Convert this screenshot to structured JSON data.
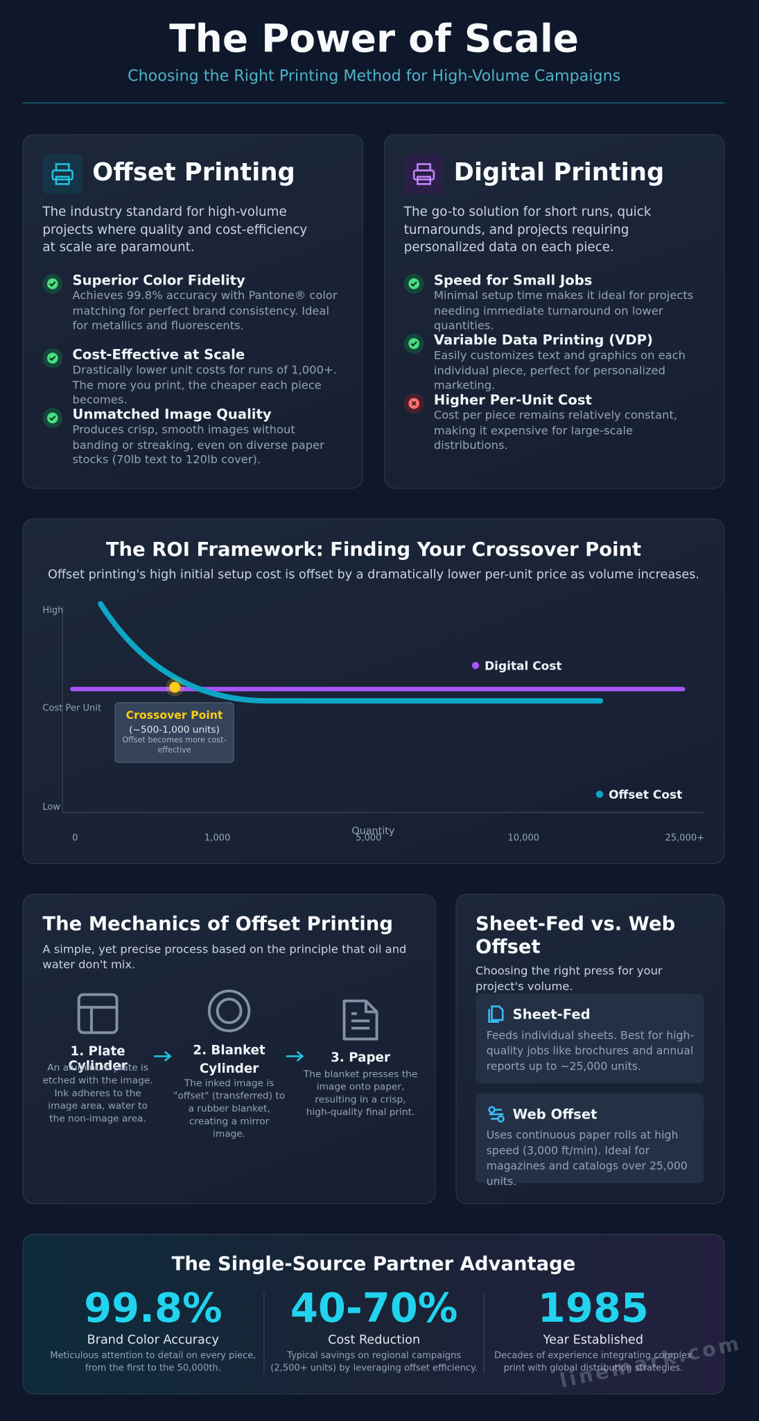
{
  "header": {
    "title": "The Power of Scale",
    "subtitle": "Choosing the Right Printing Method for High-Volume Campaigns"
  },
  "offset": {
    "title": "Offset Printing",
    "intro": "The industry standard for high-volume projects where quality and cost-efficiency at scale are paramount.",
    "features": [
      {
        "title": "Superior Color Fidelity",
        "text": "Achieves 99.8% accuracy with Pantone® color matching for perfect brand consistency. Ideal for metallics and fluorescents."
      },
      {
        "title": "Cost-Effective at Scale",
        "text": "Drastically lower unit costs for runs of 1,000+. The more you print, the cheaper each piece becomes."
      },
      {
        "title": "Unmatched Image Quality",
        "text": "Produces crisp, smooth images without banding or streaking, even on diverse paper stocks (70lb text to 120lb cover)."
      }
    ]
  },
  "digital": {
    "title": "Digital Printing",
    "intro": "The go-to solution for short runs, quick turnarounds, and projects requiring personalized data on each piece.",
    "features": [
      {
        "title": "Speed for Small Jobs",
        "text": "Minimal setup time makes it ideal for projects needing immediate turnaround on lower quantities."
      },
      {
        "title": "Variable Data Printing (VDP)",
        "text": "Easily customizes text and graphics on each individual piece, perfect for personalized marketing."
      },
      {
        "title": "Higher Per-Unit Cost",
        "text": "Cost per piece remains relatively constant, making it expensive for large-scale distributions."
      }
    ]
  },
  "roi": {
    "title": "The ROI Framework: Finding Your Crossover Point",
    "subtitle": "Offset printing's high initial setup cost is offset by a dramatically lower per-unit price as volume increases.",
    "y_labels": [
      "High",
      "Cost Per Unit",
      "Low"
    ],
    "x_label": "Quantity",
    "x_ticks": [
      "0",
      "1,000",
      "5,000",
      "10,000",
      "25,000+"
    ],
    "legend": [
      "Digital Cost",
      "Offset Cost"
    ],
    "crossover": {
      "title": "Crossover Point",
      "range": "(~500-1,000 units)",
      "note": "Offset becomes more cost-effective"
    }
  },
  "mechanics": {
    "title": "The Mechanics of Offset Printing",
    "subtitle": "A simple, yet precise process based on the principle that oil and water don't mix.",
    "steps": [
      {
        "title": "1. Plate Cylinder",
        "text": "An aluminum plate is etched with the image. Ink adheres to the image area, water to the non-image area."
      },
      {
        "title": "2. Blanket Cylinder",
        "text": "The inked image is \"offset\" (transferred) to a rubber blanket, creating a mirror image."
      },
      {
        "title": "3. Paper",
        "text": "The blanket presses the image onto paper, resulting in a crisp, high-quality final print."
      }
    ]
  },
  "press": {
    "title": "Sheet-Fed vs. Web Offset",
    "subtitle": "Choosing the right press for your project's volume.",
    "options": [
      {
        "title": "Sheet-Fed",
        "text": "Feeds individual sheets. Best for high-quality jobs like brochures and annual reports up to ~25,000 units."
      },
      {
        "title": "Web Offset",
        "text": "Uses continuous paper rolls at high speed (3,000 ft/min). Ideal for magazines and catalogs over 25,000 units."
      }
    ]
  },
  "partner": {
    "title": "The Single-Source Partner Advantage",
    "stats": [
      {
        "value": "99.8%",
        "label": "Brand Color Accuracy",
        "text": "Meticulous attention to detail on every piece, from the first to the 50,000th."
      },
      {
        "value": "40-70%",
        "label": "Cost Reduction",
        "text": "Typical savings on regional campaigns (2,500+ units) by leveraging offset efficiency."
      },
      {
        "value": "1985",
        "label": "Year Established",
        "text": "Decades of experience integrating complex print with global distribution strategies."
      }
    ]
  },
  "watermark": "linemark.com"
}
